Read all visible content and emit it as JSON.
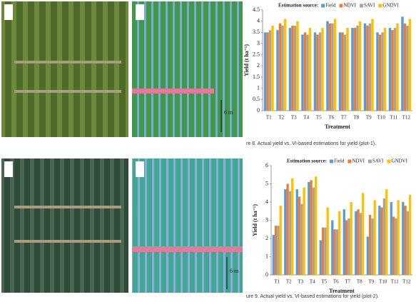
{
  "chart_data": [
    {
      "type": "bar",
      "legend_title": "Estimation source:",
      "y_label": "Yield (t ha⁻¹)",
      "x_label": "Treatment",
      "categories": [
        "T1",
        "T2",
        "T3",
        "T4",
        "T5",
        "T6",
        "T7",
        "T8",
        "T9",
        "T10",
        "T11",
        "T12"
      ],
      "series": [
        {
          "name": "Field",
          "color": "#5b9bd5",
          "values": [
            3.5,
            3.6,
            3.7,
            3.4,
            3.5,
            4.0,
            3.5,
            3.7,
            3.9,
            3.5,
            3.7,
            4.2
          ]
        },
        {
          "name": "NDVI",
          "color": "#ed7d31",
          "values": [
            3.5,
            3.9,
            3.8,
            3.5,
            3.4,
            3.9,
            3.5,
            3.7,
            3.8,
            3.4,
            3.6,
            3.9
          ]
        },
        {
          "name": "SAVI",
          "color": "#a5a5a5",
          "values": [
            3.6,
            3.8,
            3.8,
            3.4,
            3.5,
            3.9,
            3.4,
            3.8,
            3.9,
            3.5,
            3.7,
            3.8
          ]
        },
        {
          "name": "GNDVI",
          "color": "#ffc000",
          "values": [
            3.8,
            4.1,
            4.0,
            3.7,
            3.7,
            4.1,
            3.7,
            4.0,
            4.1,
            3.7,
            3.9,
            4.1
          ]
        }
      ],
      "ylim": [
        0,
        4.5
      ],
      "yticks": [
        0,
        0.5,
        1,
        1.5,
        2,
        2.5,
        3,
        3.5,
        4,
        4.5
      ]
    },
    {
      "type": "bar",
      "legend_title": "Estimation source:",
      "y_label": "Yield (t ha⁻¹)",
      "x_label": "Treatment",
      "categories": [
        "T1",
        "T2",
        "T3",
        "T4",
        "T5",
        "T6",
        "T7",
        "T8",
        "T9",
        "T10",
        "T11",
        "T12"
      ],
      "series": [
        {
          "name": "Field",
          "color": "#5b9bd5",
          "values": [
            2.2,
            4.7,
            4.7,
            5.1,
            1.9,
            3.0,
            3.6,
            3.5,
            2.1,
            3.8,
            4.0,
            4.0
          ]
        },
        {
          "name": "NDVI",
          "color": "#ed7d31",
          "values": [
            2.7,
            5.0,
            4.3,
            5.2,
            2.6,
            2.5,
            3.0,
            3.6,
            3.3,
            3.7,
            3.2,
            3.8
          ]
        },
        {
          "name": "SAVI",
          "color": "#a5a5a5",
          "values": [
            2.7,
            4.6,
            3.9,
            4.8,
            2.6,
            2.5,
            3.1,
            3.4,
            3.1,
            4.2,
            3.1,
            3.5
          ]
        },
        {
          "name": "GNDVI",
          "color": "#ffc000",
          "values": [
            3.8,
            5.3,
            4.8,
            5.4,
            3.7,
            3.5,
            4.0,
            4.5,
            4.1,
            4.7,
            4.1,
            4.4
          ]
        }
      ],
      "ylim": [
        0,
        6
      ],
      "yticks": [
        0,
        1,
        2,
        3,
        4,
        5,
        6
      ]
    }
  ],
  "captions": [
    "re 8. Actual yield vs. VI-based estimations for yield (plot-1).",
    "ure 9. Actual yield vs. VI-based estimations for yield (plot-2)."
  ],
  "image_labels": [
    "6 m",
    "6 m"
  ]
}
